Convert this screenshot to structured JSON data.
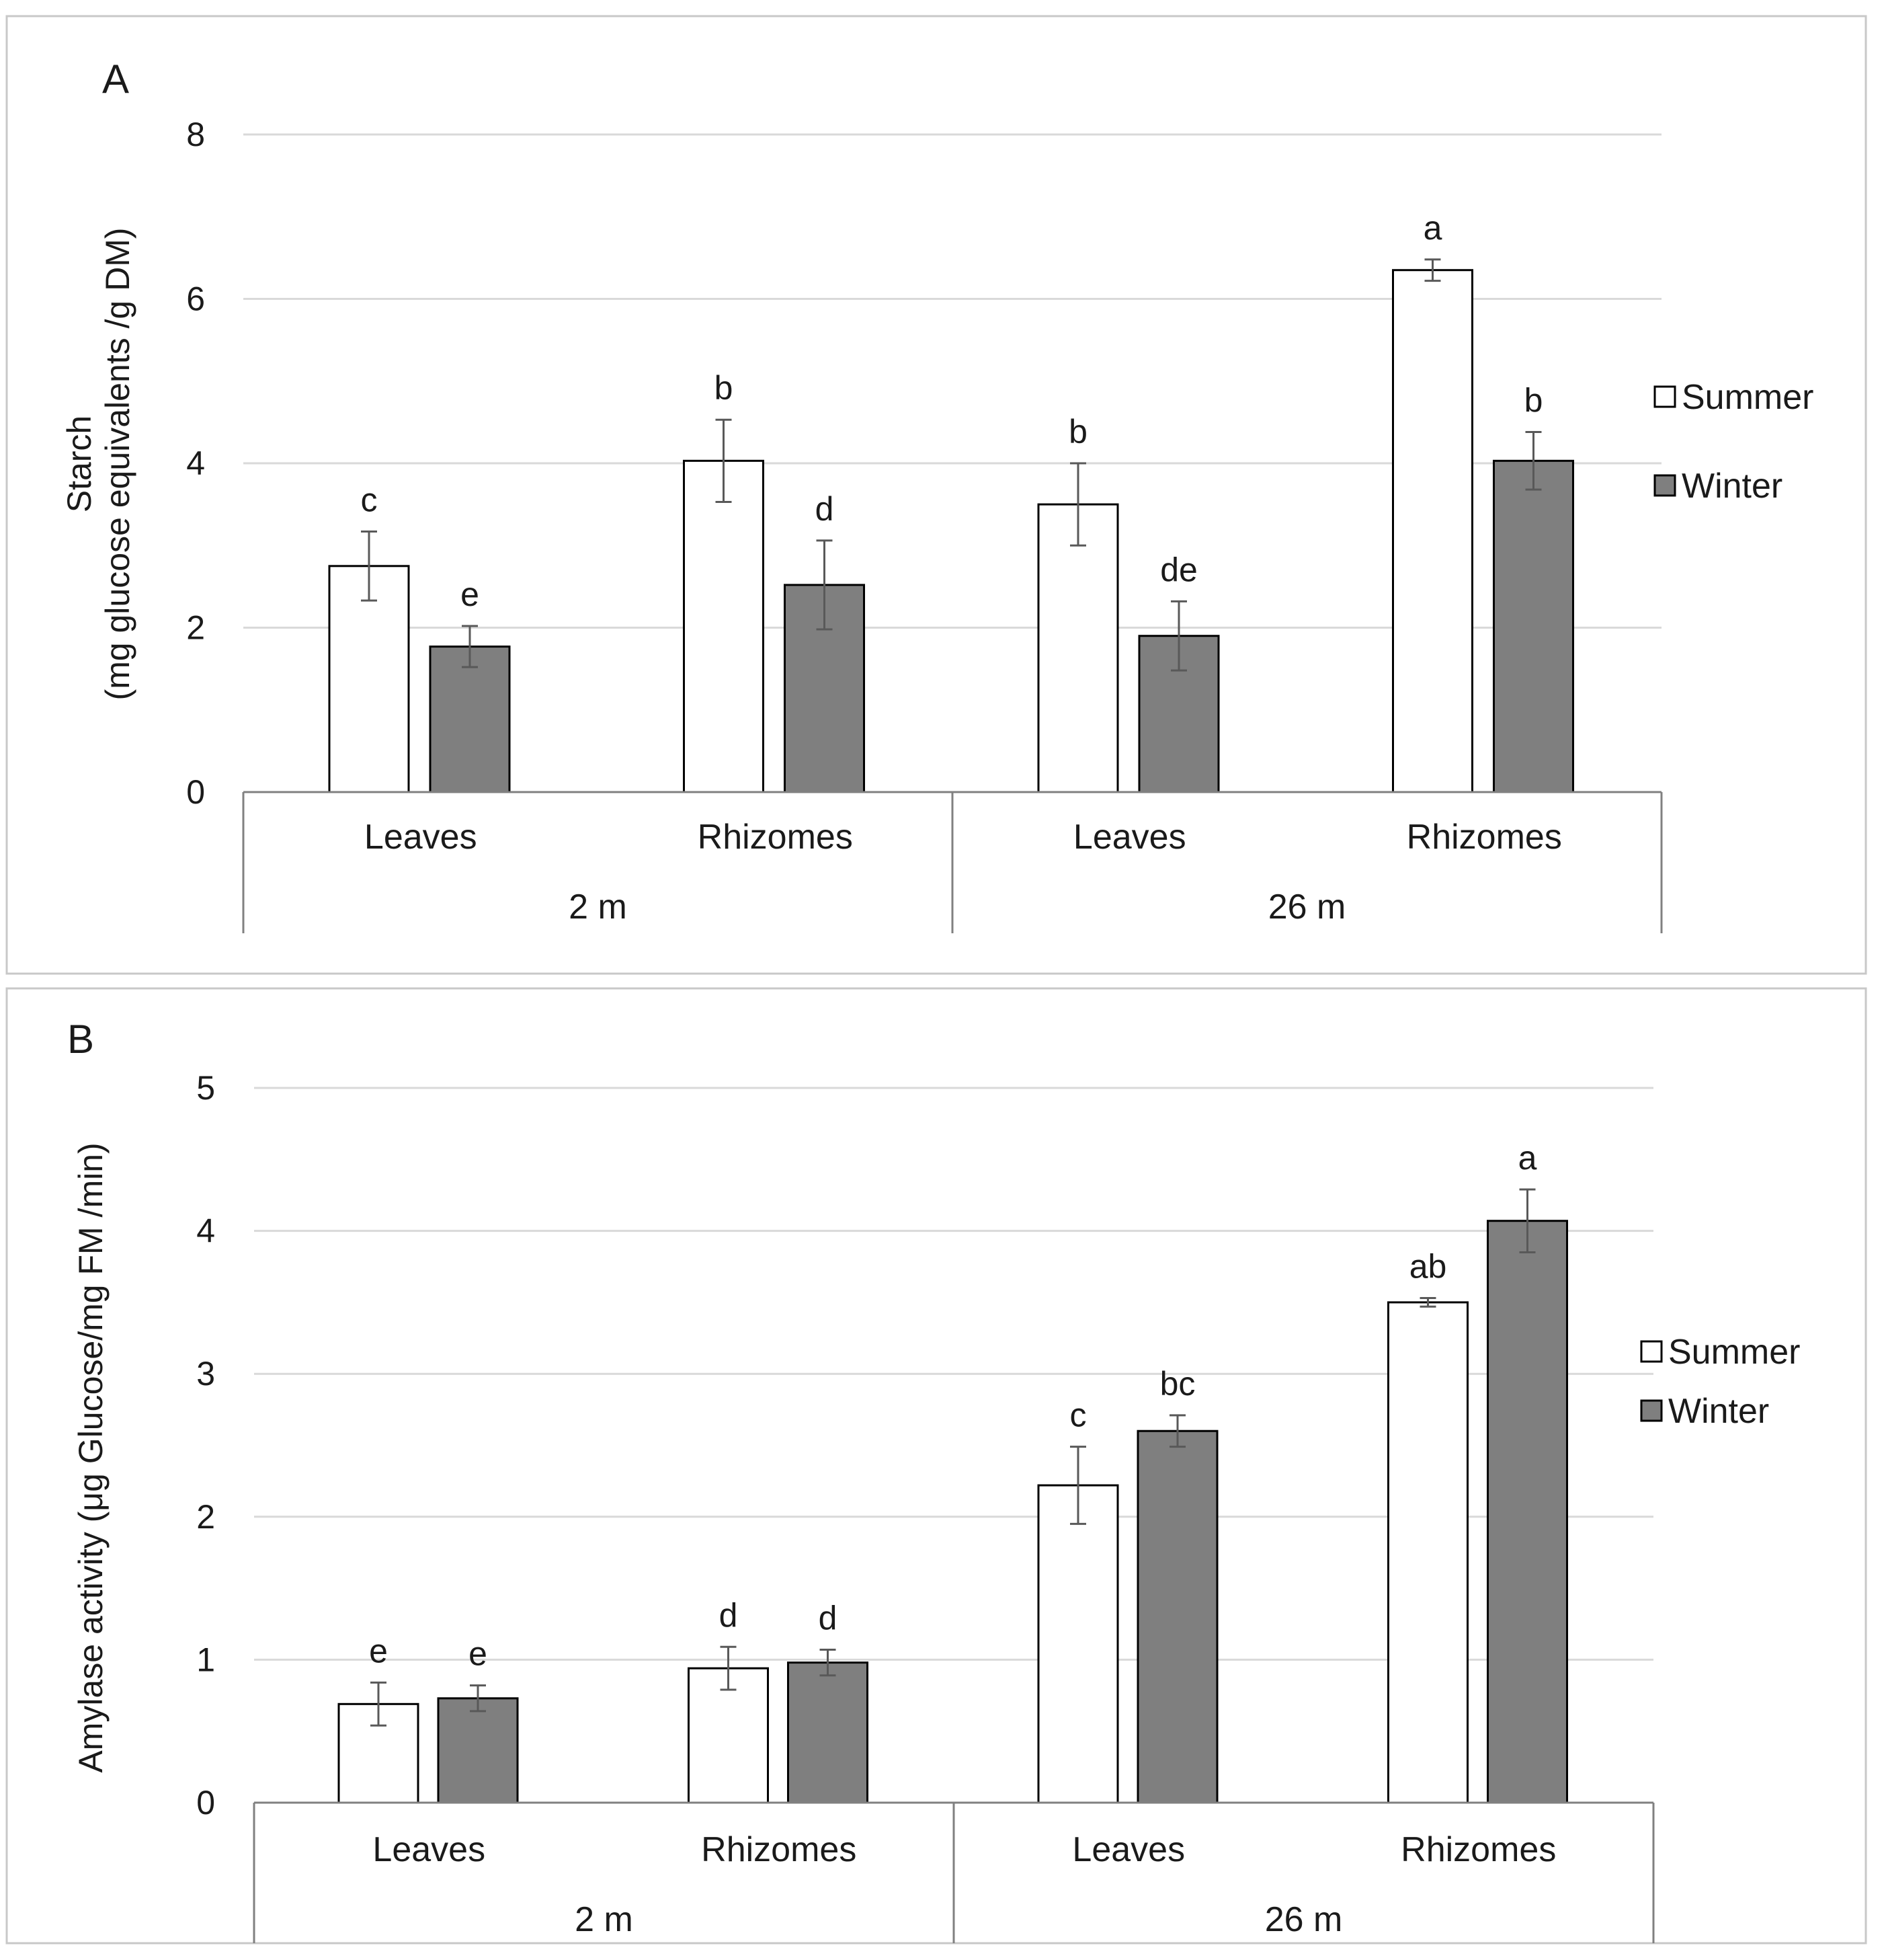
{
  "colors": {
    "summer": "#ffffff",
    "winter": "#7f7f7f",
    "grid": "#d9d9d9",
    "axis": "#808080",
    "bar_stroke": "#000000",
    "frame": "#c8c8c8"
  },
  "chart_data": [
    {
      "type": "bar",
      "panel_label": "A",
      "ylabel_line1": "Starch",
      "ylabel_line2": "(mg glucose equivalents /g DM)",
      "ylim": [
        0,
        8
      ],
      "yticks": [
        "0",
        "2",
        "4",
        "6",
        "8"
      ],
      "grid": true,
      "legend_position": "right",
      "categories": [
        "Leaves",
        "Rhizomes",
        "Leaves",
        "Rhizomes"
      ],
      "groups": [
        {
          "label": "2 m",
          "span": [
            0,
            1
          ]
        },
        {
          "label": "26 m",
          "span": [
            2,
            3
          ]
        }
      ],
      "series": [
        {
          "name": "Summer",
          "values": [
            2.75,
            4.03,
            3.5,
            6.35
          ],
          "errors": [
            0.42,
            0.5,
            0.5,
            0.13
          ],
          "letters": [
            "c",
            "b",
            "b",
            "a"
          ]
        },
        {
          "name": "Winter",
          "values": [
            1.77,
            2.52,
            1.9,
            4.03
          ],
          "errors": [
            0.25,
            0.54,
            0.42,
            0.35
          ],
          "letters": [
            "e",
            "d",
            "de",
            "b"
          ]
        }
      ]
    },
    {
      "type": "bar",
      "panel_label": "B",
      "ylabel_line1": "Amylase activity (μg Glucose/mg FM /min)",
      "ylabel_line2": "",
      "ylim": [
        0,
        5
      ],
      "yticks": [
        "0",
        "1",
        "2",
        "3",
        "4",
        "5"
      ],
      "grid": true,
      "legend_position": "right",
      "categories": [
        "Leaves",
        "Rhizomes",
        "Leaves",
        "Rhizomes"
      ],
      "groups": [
        {
          "label": "2 m",
          "span": [
            0,
            1
          ]
        },
        {
          "label": "26 m",
          "span": [
            2,
            3
          ]
        }
      ],
      "series": [
        {
          "name": "Summer",
          "values": [
            0.69,
            0.94,
            2.22,
            3.5
          ],
          "errors": [
            0.15,
            0.15,
            0.27,
            0.03
          ],
          "letters": [
            "e",
            "d",
            "c",
            "ab"
          ]
        },
        {
          "name": "Winter",
          "values": [
            0.73,
            0.98,
            2.6,
            4.07
          ],
          "errors": [
            0.09,
            0.09,
            0.11,
            0.22
          ],
          "letters": [
            "e",
            "d",
            "bc",
            "a"
          ]
        }
      ]
    }
  ]
}
